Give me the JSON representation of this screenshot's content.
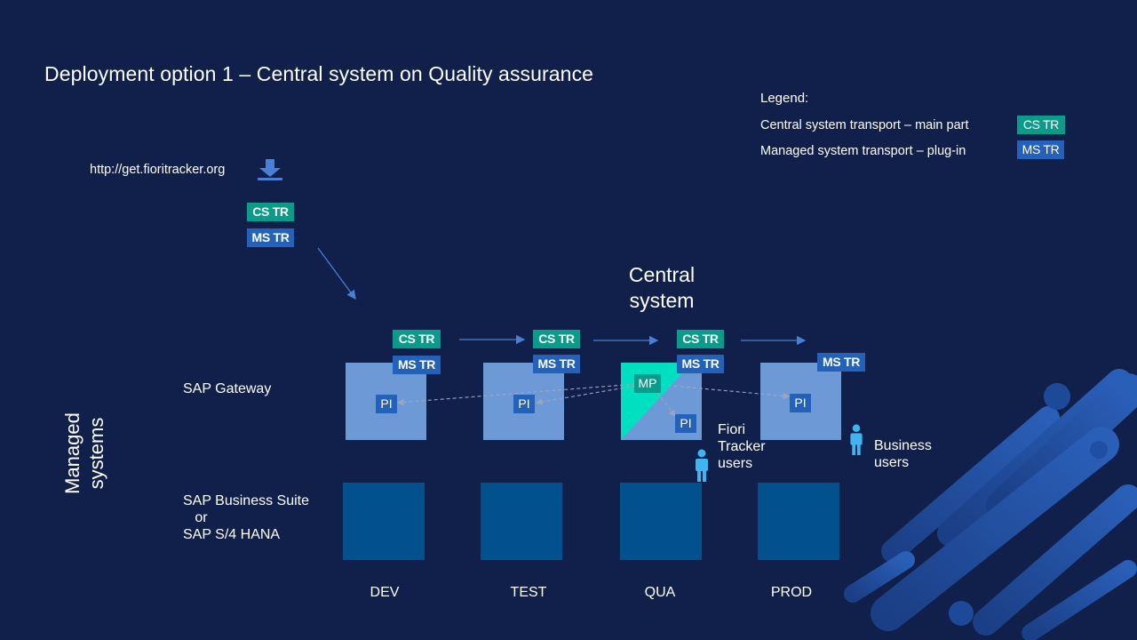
{
  "slide": {
    "title": "Deployment option 1 – Central system on Quality assurance"
  },
  "legend": {
    "title": "Legend:",
    "items": [
      {
        "text": "Central system transport – main part",
        "tag": "CS TR"
      },
      {
        "text": "Managed system transport – plug-in",
        "tag": "MS TR"
      }
    ]
  },
  "source": {
    "url": "http://get.fioritracker.org",
    "tags": [
      "CS TR",
      "MS TR"
    ]
  },
  "central_system": {
    "label": "Central system"
  },
  "managed_systems": {
    "label": "Managed systems"
  },
  "rows": {
    "gateway": "SAP Gateway",
    "suite": "SAP Business Suite\n   or\nSAP S/4 HANA"
  },
  "environments": [
    {
      "name": "DEV",
      "cs_tag": "CS TR",
      "ms_tag": "MS TR",
      "component": "PI"
    },
    {
      "name": "TEST",
      "cs_tag": "CS TR",
      "ms_tag": "MS TR",
      "component": "PI"
    },
    {
      "name": "QUA",
      "cs_tag": "CS TR",
      "ms_tag": "MS TR",
      "component": "PI",
      "main_part": "MP"
    },
    {
      "name": "PROD",
      "ms_tag": "MS TR",
      "component": "PI"
    }
  ],
  "users": {
    "fiori": "Fiori\nTracker\nusers",
    "business": "Business\nusers"
  },
  "colors": {
    "background": "#10204a",
    "cs_tag": "#0a9b8a",
    "ms_tag": "#2461b8",
    "gateway_box": "#6d9ad6",
    "suite_box": "#03508f",
    "main_part": "#00e0c0"
  }
}
